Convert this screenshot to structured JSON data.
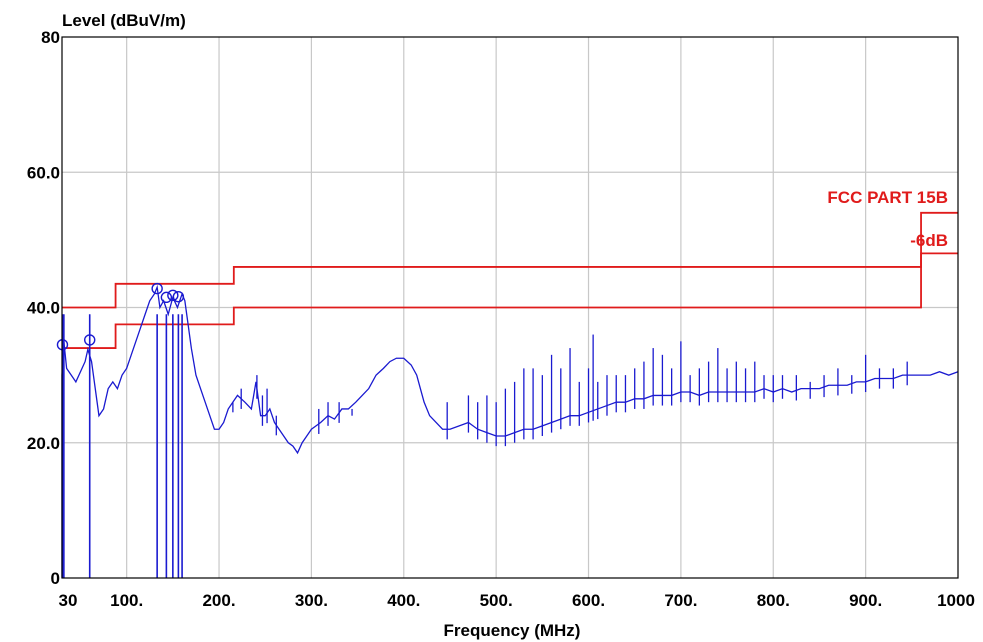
{
  "chart_data": {
    "type": "line",
    "title": "",
    "ylabel": "Level (dBuV/m)",
    "xlabel": "Frequency (MHz)",
    "xlim": [
      30,
      1000
    ],
    "ylim": [
      0,
      80
    ],
    "grid": true,
    "x_ticks": [
      30,
      100,
      200,
      300,
      400,
      500,
      600,
      700,
      800,
      900,
      1000
    ],
    "x_tick_labels": [
      "30",
      "100.",
      "200.",
      "300.",
      "400.",
      "500.",
      "600.",
      "700.",
      "800.",
      "900.",
      "1000"
    ],
    "y_ticks": [
      0,
      20,
      40,
      60,
      80
    ],
    "y_tick_labels": [
      "0",
      "20.0",
      "40.0",
      "60.0",
      "80"
    ],
    "colors": {
      "measurement": "#1a1ad0",
      "limit": "#e01b1b",
      "grid": "#c8c8c8"
    },
    "limits": [
      {
        "label": "FCC PART 15B",
        "steps": [
          [
            30,
            88,
            40.0
          ],
          [
            88,
            216,
            43.5
          ],
          [
            216,
            960,
            46.0
          ],
          [
            960,
            1000,
            54.0
          ]
        ]
      },
      {
        "label": "-6dB",
        "steps": [
          [
            30,
            88,
            34.0
          ],
          [
            88,
            216,
            37.5
          ],
          [
            216,
            960,
            40.0
          ],
          [
            960,
            1000,
            48.0
          ]
        ]
      }
    ],
    "series": [
      {
        "values": [
          [
            30,
            30
          ],
          [
            32,
            35
          ],
          [
            35,
            31
          ],
          [
            40,
            30
          ],
          [
            45,
            29
          ],
          [
            50,
            30.5
          ],
          [
            55,
            32
          ],
          [
            58,
            33.8
          ],
          [
            62,
            32
          ],
          [
            66,
            28
          ],
          [
            70,
            24
          ],
          [
            75,
            25
          ],
          [
            80,
            28
          ],
          [
            85,
            29
          ],
          [
            90,
            28
          ],
          [
            95,
            30
          ],
          [
            100,
            31
          ],
          [
            105,
            33
          ],
          [
            110,
            35
          ],
          [
            115,
            37
          ],
          [
            120,
            39
          ],
          [
            125,
            41
          ],
          [
            130,
            42
          ],
          [
            133,
            43
          ],
          [
            136,
            40
          ],
          [
            140,
            41
          ],
          [
            145,
            39
          ],
          [
            150,
            41.5
          ],
          [
            155,
            40
          ],
          [
            160,
            42
          ],
          [
            163,
            41
          ],
          [
            166,
            38
          ],
          [
            170,
            34
          ],
          [
            175,
            30
          ],
          [
            180,
            28
          ],
          [
            185,
            26
          ],
          [
            190,
            24
          ],
          [
            195,
            22
          ],
          [
            200,
            22
          ],
          [
            205,
            23
          ],
          [
            210,
            25
          ],
          [
            215,
            26
          ],
          [
            220,
            27
          ],
          [
            228,
            26
          ],
          [
            235,
            25
          ],
          [
            240,
            29
          ],
          [
            245,
            24
          ],
          [
            250,
            24
          ],
          [
            255,
            25
          ],
          [
            260,
            23
          ],
          [
            265,
            22
          ],
          [
            270,
            21
          ],
          [
            275,
            20
          ],
          [
            280,
            19.5
          ],
          [
            285,
            18.5
          ],
          [
            290,
            20
          ],
          [
            295,
            21
          ],
          [
            300,
            22
          ],
          [
            305,
            22.5
          ],
          [
            310,
            23
          ],
          [
            318,
            24
          ],
          [
            325,
            23.5
          ],
          [
            333,
            25
          ],
          [
            340,
            25
          ],
          [
            348,
            26
          ],
          [
            355,
            27
          ],
          [
            362,
            28
          ],
          [
            370,
            30
          ],
          [
            378,
            31
          ],
          [
            385,
            32
          ],
          [
            392,
            32.5
          ],
          [
            400,
            32.5
          ],
          [
            408,
            31.5
          ],
          [
            414,
            30
          ],
          [
            418,
            28
          ],
          [
            422,
            26
          ],
          [
            428,
            24
          ],
          [
            435,
            23
          ],
          [
            442,
            22
          ],
          [
            450,
            22
          ],
          [
            460,
            22.5
          ],
          [
            470,
            23
          ],
          [
            480,
            22
          ],
          [
            490,
            21.5
          ],
          [
            500,
            21
          ],
          [
            510,
            21
          ],
          [
            520,
            21.5
          ],
          [
            530,
            22
          ],
          [
            540,
            22
          ],
          [
            550,
            22.5
          ],
          [
            560,
            23
          ],
          [
            570,
            23.5
          ],
          [
            580,
            24
          ],
          [
            590,
            24
          ],
          [
            600,
            24.5
          ],
          [
            610,
            25
          ],
          [
            620,
            25.5
          ],
          [
            630,
            26
          ],
          [
            640,
            26
          ],
          [
            650,
            26.5
          ],
          [
            660,
            26.5
          ],
          [
            670,
            27
          ],
          [
            680,
            27
          ],
          [
            690,
            27
          ],
          [
            700,
            27.5
          ],
          [
            710,
            27.5
          ],
          [
            720,
            27
          ],
          [
            730,
            27.5
          ],
          [
            740,
            27.5
          ],
          [
            750,
            27.5
          ],
          [
            760,
            27.5
          ],
          [
            770,
            27.5
          ],
          [
            780,
            27.5
          ],
          [
            790,
            28
          ],
          [
            800,
            27.5
          ],
          [
            810,
            28
          ],
          [
            820,
            27.5
          ],
          [
            830,
            28
          ],
          [
            840,
            28
          ],
          [
            850,
            28
          ],
          [
            860,
            28.5
          ],
          [
            870,
            28.5
          ],
          [
            880,
            28.5
          ],
          [
            890,
            29
          ],
          [
            900,
            29
          ],
          [
            910,
            29.5
          ],
          [
            920,
            29.5
          ],
          [
            930,
            29.5
          ],
          [
            940,
            30
          ],
          [
            950,
            30
          ],
          [
            960,
            30
          ],
          [
            970,
            30
          ],
          [
            980,
            30.5
          ],
          [
            990,
            30
          ],
          [
            1000,
            30.5
          ]
        ]
      }
    ],
    "spikes": [
      [
        215,
        26
      ],
      [
        224,
        28
      ],
      [
        241,
        30
      ],
      [
        247,
        27
      ],
      [
        252,
        28
      ],
      [
        262,
        24
      ],
      [
        308,
        25
      ],
      [
        318,
        26
      ],
      [
        330,
        26
      ],
      [
        344,
        25
      ],
      [
        447,
        26
      ],
      [
        470,
        27
      ],
      [
        480,
        26
      ],
      [
        490,
        27
      ],
      [
        500,
        26
      ],
      [
        510,
        28
      ],
      [
        520,
        29
      ],
      [
        530,
        31
      ],
      [
        540,
        31
      ],
      [
        550,
        30
      ],
      [
        560,
        33
      ],
      [
        570,
        31
      ],
      [
        580,
        34
      ],
      [
        590,
        29
      ],
      [
        600,
        31
      ],
      [
        605,
        36
      ],
      [
        610,
        29
      ],
      [
        620,
        30
      ],
      [
        630,
        30
      ],
      [
        640,
        30
      ],
      [
        650,
        31
      ],
      [
        660,
        32
      ],
      [
        670,
        34
      ],
      [
        680,
        33
      ],
      [
        690,
        31
      ],
      [
        700,
        35
      ],
      [
        710,
        30
      ],
      [
        720,
        31
      ],
      [
        730,
        32
      ],
      [
        740,
        34
      ],
      [
        750,
        31
      ],
      [
        760,
        32
      ],
      [
        770,
        31
      ],
      [
        780,
        32
      ],
      [
        790,
        30
      ],
      [
        800,
        30
      ],
      [
        810,
        30
      ],
      [
        825,
        30
      ],
      [
        840,
        29
      ],
      [
        855,
        30
      ],
      [
        870,
        31
      ],
      [
        885,
        30
      ],
      [
        900,
        33
      ],
      [
        915,
        31
      ],
      [
        930,
        31
      ],
      [
        945,
        32
      ]
    ],
    "markers": [
      {
        "x": 30.5,
        "y": 34.5
      },
      {
        "x": 60,
        "y": 35.2
      },
      {
        "x": 133,
        "y": 42.8
      },
      {
        "x": 143,
        "y": 41.5
      },
      {
        "x": 150,
        "y": 41.8
      },
      {
        "x": 156,
        "y": 41.6
      }
    ],
    "marker_drops": [
      30.5,
      32,
      60,
      133,
      143,
      150,
      156,
      160
    ]
  }
}
